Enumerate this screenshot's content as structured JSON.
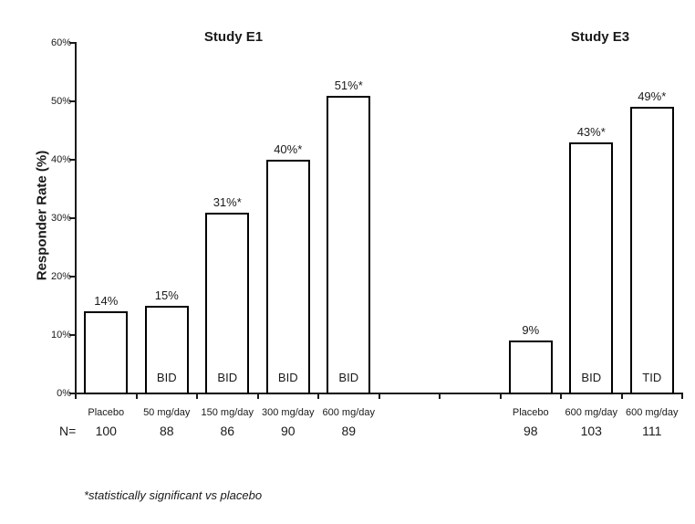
{
  "chart_data": {
    "type": "bar",
    "ylabel": "Responder Rate (%)",
    "ylim": [
      0,
      60
    ],
    "ytick_labels": [
      "0%",
      "10%",
      "20%",
      "30%",
      "40%",
      "50%",
      "60%"
    ],
    "total_slots": 10,
    "n_row_label": "N=",
    "footnote": "*statistically significant vs placebo",
    "grid": false,
    "legend": "none",
    "bar_fill": "#ffffff",
    "bar_border": "#000000",
    "text_color": "#1a1a1a",
    "groups": [
      {
        "study": "Study E1",
        "bars": [
          {
            "slot": 0,
            "category": "Placebo",
            "n": "100",
            "value": 14,
            "value_label": "14%",
            "freq": ""
          },
          {
            "slot": 1,
            "category": "50 mg/day",
            "n": "88",
            "value": 15,
            "value_label": "15%",
            "freq": "BID"
          },
          {
            "slot": 2,
            "category": "150 mg/day",
            "n": "86",
            "value": 31,
            "value_label": "31%*",
            "freq": "BID"
          },
          {
            "slot": 3,
            "category": "300 mg/day",
            "n": "90",
            "value": 40,
            "value_label": "40%*",
            "freq": "BID"
          },
          {
            "slot": 4,
            "category": "600 mg/day",
            "n": "89",
            "value": 51,
            "value_label": "51%*",
            "freq": "BID"
          }
        ]
      },
      {
        "study": "Study E3",
        "bars": [
          {
            "slot": 7,
            "category": "Placebo",
            "n": "98",
            "value": 9,
            "value_label": "9%",
            "freq": ""
          },
          {
            "slot": 8,
            "category": "600 mg/day",
            "n": "103",
            "value": 43,
            "value_label": "43%*",
            "freq": "BID"
          },
          {
            "slot": 9,
            "category": "600 mg/day",
            "n": "111",
            "value": 49,
            "value_label": "49%*",
            "freq": "TID"
          }
        ]
      }
    ]
  }
}
